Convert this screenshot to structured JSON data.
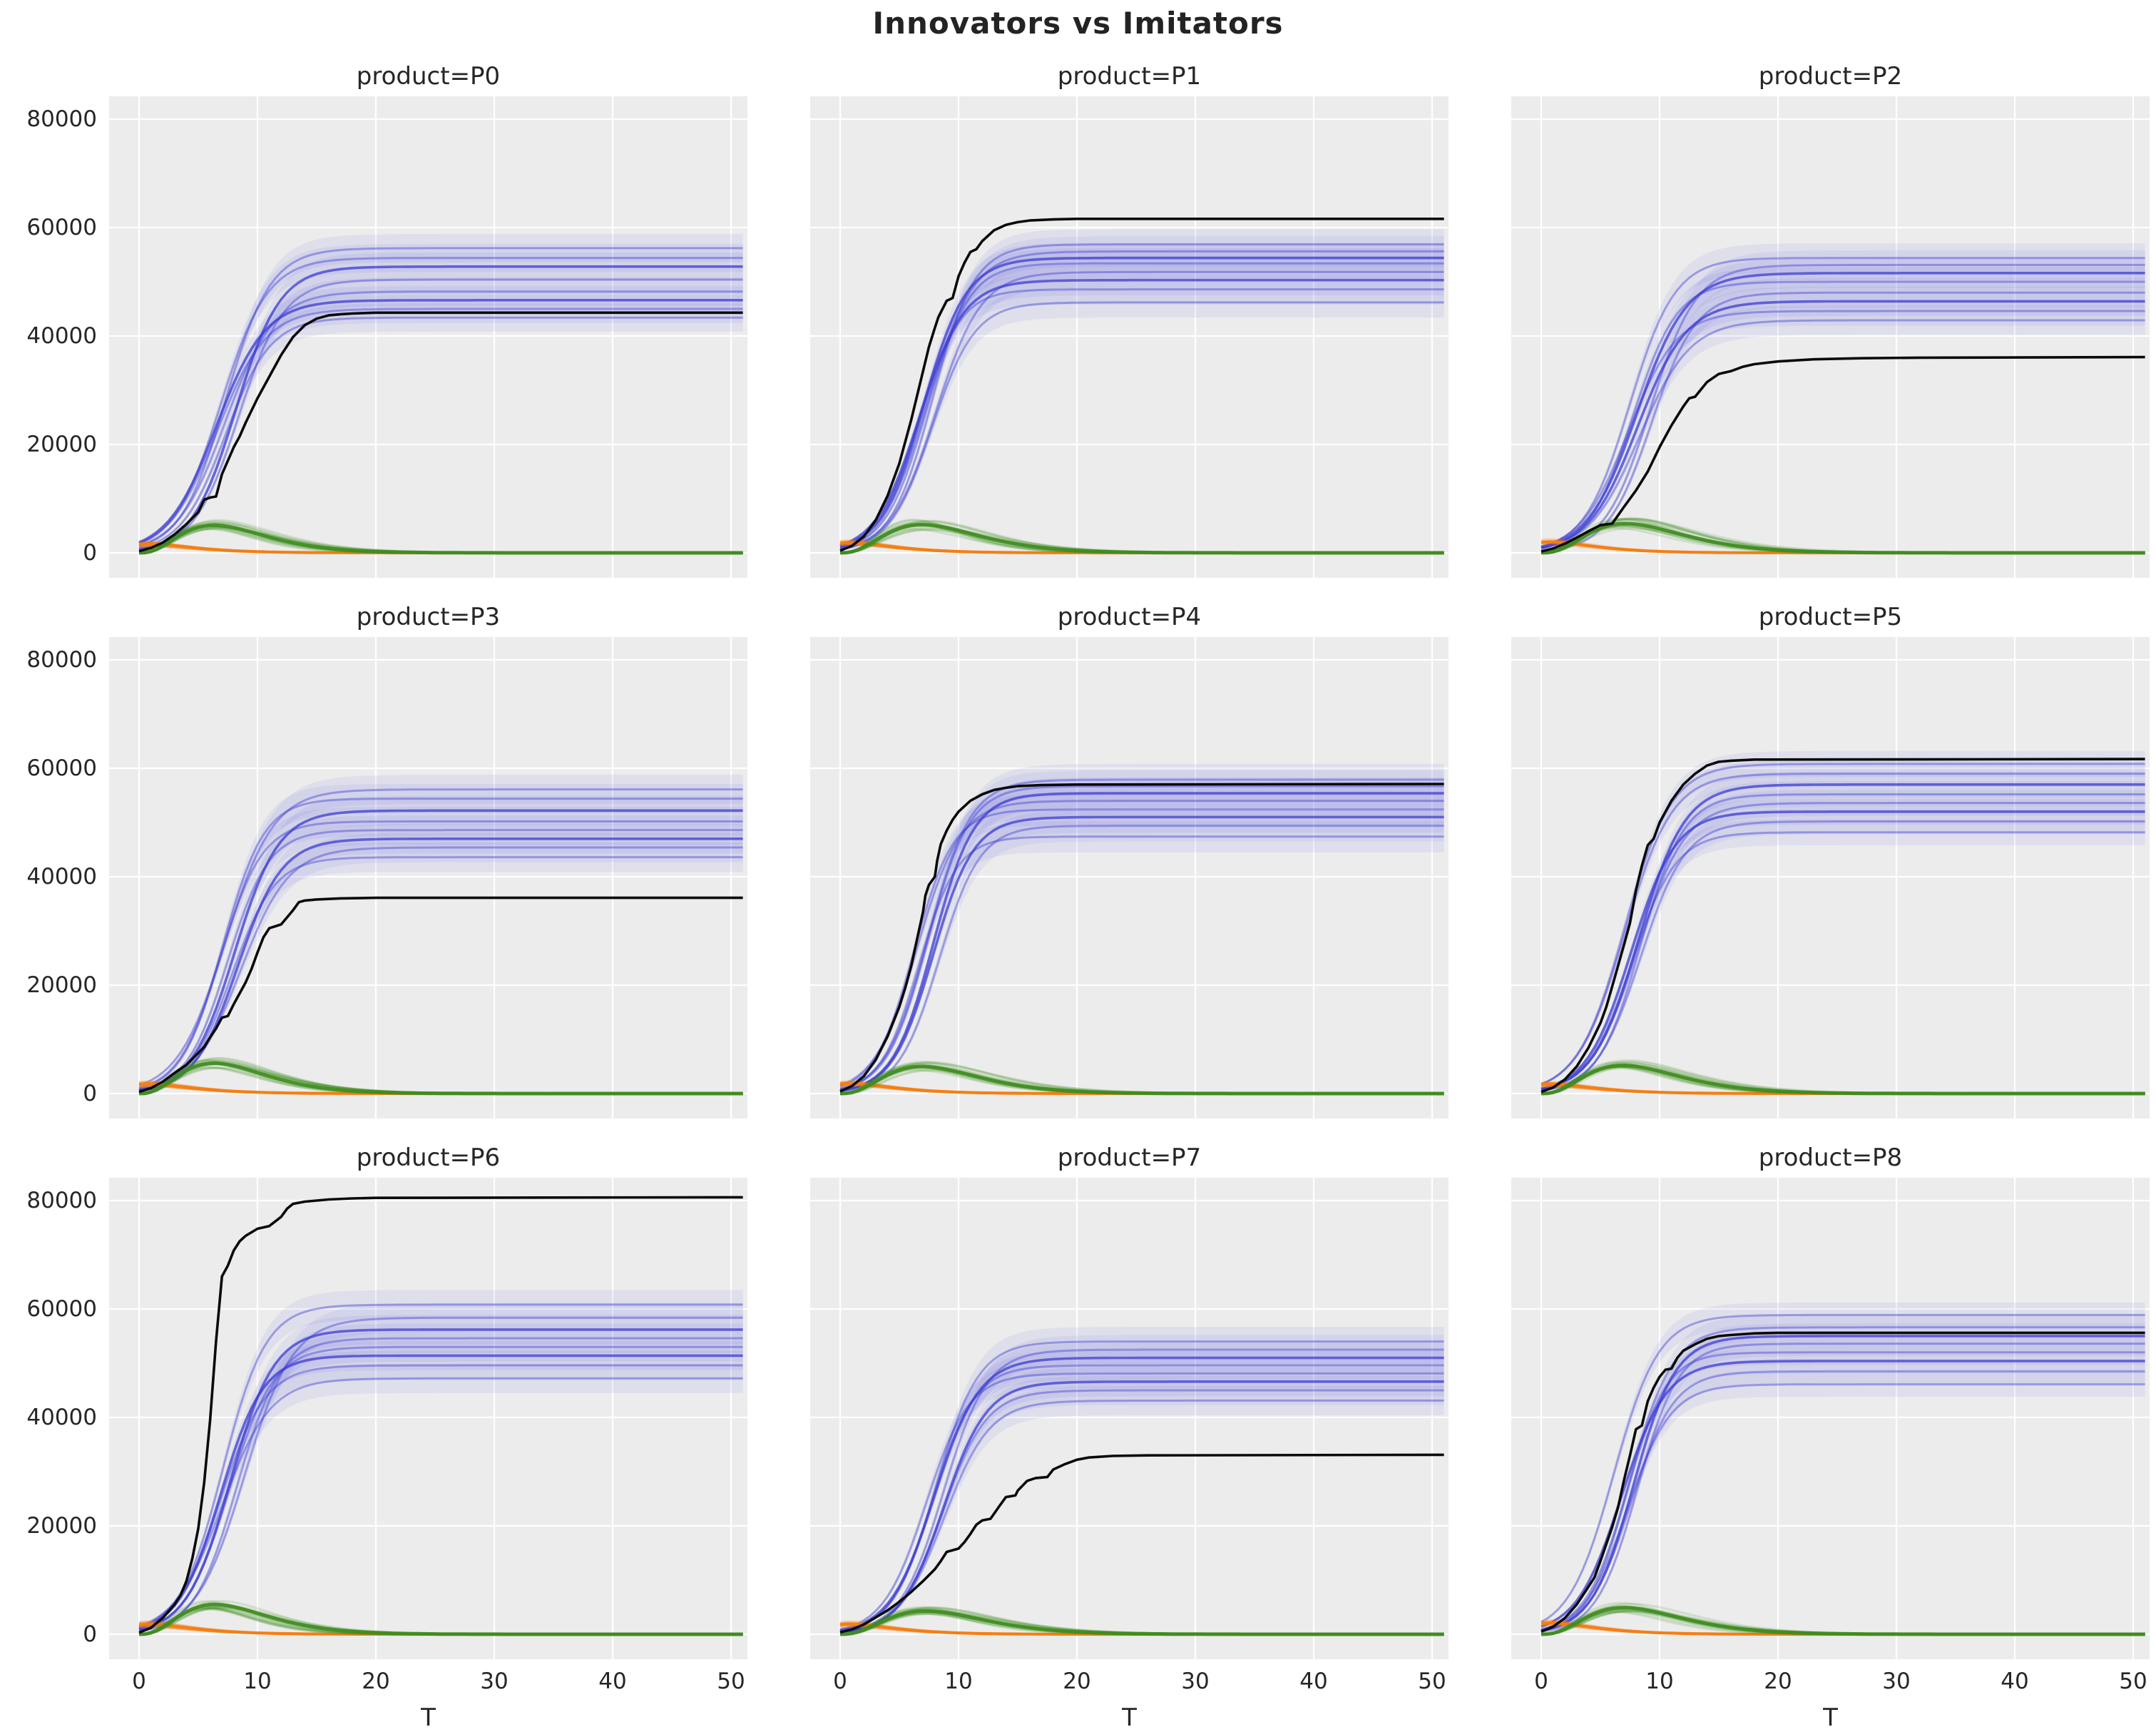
{
  "figure": {
    "title": "Innovators vs Imitators",
    "xlabel": "T",
    "x_ticks": [
      0,
      10,
      20,
      30,
      40,
      50
    ],
    "y_ticks": [
      0,
      20000,
      40000,
      60000,
      80000
    ],
    "x_max": 51,
    "y_axis_max_label": 80000,
    "rows": 3,
    "cols": 3,
    "colors": {
      "panel_background": "#ececec",
      "gridline": "#ffffff",
      "text": "#262626",
      "observed_black_line": "#0a0a0a",
      "simulated_blue_line": "#3c3cd2",
      "simulated_blue_band": "#6969e1",
      "green_new_adopter_curves": "#3f8c20",
      "orange_innovator_curves": "#f57d11"
    }
  },
  "chart_data": [
    {
      "type": "line",
      "title": "product=P0",
      "black_line": {
        "plateau": 44300,
        "t": [
          0,
          1,
          2,
          3,
          4,
          5,
          5.5,
          6,
          6.5,
          7,
          8,
          8.5,
          9,
          10,
          11,
          12,
          13,
          14,
          15,
          16,
          17,
          18,
          20,
          51
        ],
        "v": [
          300,
          900,
          1900,
          3400,
          5300,
          7500,
          9800,
          10200,
          10400,
          14500,
          19500,
          21500,
          24000,
          28500,
          32500,
          36500,
          39800,
          42000,
          43200,
          43800,
          44000,
          44150,
          44300,
          44300
        ]
      },
      "blue_runs": {
        "plateaus": [
          43400,
          45000,
          46600,
          48200,
          50400,
          52800,
          54400,
          56200
        ],
        "t_mid": 7.6,
        "rate": 0.52,
        "band_halfwidth": 2600,
        "final_range": [
          41000,
          58300
        ]
      },
      "green_runs": {
        "peak": 5100,
        "t_peak": 6.3,
        "runs": 16
      },
      "orange_runs": {
        "start": 1600,
        "runs": 14
      }
    },
    {
      "type": "line",
      "title": "product=P1",
      "black_line": {
        "plateau": 61600,
        "t": [
          0,
          1,
          2,
          3,
          4,
          5,
          6,
          7,
          7.5,
          8,
          8.3,
          9,
          9.5,
          10,
          10.5,
          11,
          11.5,
          12,
          13,
          14,
          15,
          16,
          18,
          20,
          51
        ],
        "v": [
          400,
          1300,
          3000,
          6000,
          10500,
          16500,
          24500,
          33500,
          38000,
          41500,
          43500,
          46500,
          47000,
          51000,
          53500,
          55500,
          56000,
          57500,
          59500,
          60500,
          61000,
          61300,
          61500,
          61600,
          61600
        ]
      },
      "blue_runs": {
        "plateaus": [
          46200,
          48600,
          50300,
          51800,
          53400,
          54400,
          55600,
          56900
        ],
        "t_mid": 7.1,
        "rate": 0.56,
        "band_halfwidth": 2800,
        "final_range": [
          43400,
          59700
        ]
      },
      "green_runs": {
        "peak": 5200,
        "t_peak": 6.9,
        "runs": 16
      },
      "orange_runs": {
        "start": 1800,
        "runs": 14
      }
    },
    {
      "type": "line",
      "title": "product=P2",
      "black_line": {
        "plateau": 36100,
        "t": [
          0,
          1,
          2,
          3,
          4,
          5,
          6,
          7,
          8,
          9,
          10,
          11,
          12,
          12.5,
          13,
          14,
          15,
          16,
          17,
          18,
          20,
          23,
          27,
          32,
          51
        ],
        "v": [
          250,
          800,
          1700,
          2800,
          4000,
          5100,
          5400,
          8500,
          11500,
          15000,
          19500,
          23500,
          27000,
          28500,
          28800,
          31500,
          33000,
          33500,
          34300,
          34800,
          35300,
          35700,
          35900,
          36000,
          36100
        ]
      },
      "blue_runs": {
        "plateaus": [
          42900,
          44600,
          46400,
          48000,
          50000,
          51600,
          53100,
          54400
        ],
        "t_mid": 8.3,
        "rate": 0.5,
        "band_halfwidth": 2700,
        "final_range": [
          40200,
          57100
        ]
      },
      "green_runs": {
        "peak": 5400,
        "t_peak": 7.1,
        "runs": 16
      },
      "orange_runs": {
        "start": 1900,
        "runs": 14
      }
    },
    {
      "type": "line",
      "title": "product=P3",
      "black_line": {
        "plateau": 36100,
        "t": [
          0,
          1,
          2,
          3,
          4,
          5,
          5.5,
          6,
          6.5,
          7,
          7.5,
          8,
          9,
          9.5,
          10,
          10.5,
          11,
          12,
          13,
          13.5,
          14,
          15,
          17,
          20,
          51
        ],
        "v": [
          300,
          1000,
          2200,
          3800,
          5300,
          7500,
          8600,
          10400,
          12000,
          14000,
          14300,
          16500,
          20500,
          23000,
          26000,
          28800,
          30500,
          31200,
          33800,
          35300,
          35600,
          35800,
          36000,
          36100,
          36100
        ]
      },
      "blue_runs": {
        "plateaus": [
          43600,
          45400,
          47000,
          48600,
          50200,
          52200,
          54400,
          56100
        ],
        "t_mid": 7.7,
        "rate": 0.53,
        "band_halfwidth": 2700,
        "final_range": [
          40900,
          58800
        ]
      },
      "green_runs": {
        "peak": 5600,
        "t_peak": 6.3,
        "runs": 16
      },
      "orange_runs": {
        "start": 1700,
        "runs": 14
      }
    },
    {
      "type": "line",
      "title": "product=P4",
      "black_line": {
        "plateau": 57100,
        "t": [
          0,
          1,
          2,
          3,
          4,
          5,
          5.5,
          6,
          6.5,
          7,
          7.2,
          7.5,
          8,
          8.2,
          8.5,
          9,
          9.5,
          10,
          11,
          12,
          13,
          14,
          15,
          17,
          20,
          51
        ],
        "v": [
          400,
          1400,
          3200,
          6200,
          10500,
          16000,
          19500,
          23500,
          28500,
          33500,
          36500,
          38500,
          40000,
          43000,
          46000,
          48500,
          50500,
          52000,
          54000,
          55200,
          56000,
          56400,
          56700,
          56900,
          57000,
          57100
        ]
      },
      "blue_runs": {
        "plateaus": [
          47400,
          49400,
          51000,
          52400,
          54000,
          55400,
          56700,
          57900
        ],
        "t_mid": 7.3,
        "rate": 0.57,
        "band_halfwidth": 2900,
        "final_range": [
          44500,
          60800
        ]
      },
      "green_runs": {
        "peak": 5000,
        "t_peak": 6.9,
        "runs": 16
      },
      "orange_runs": {
        "start": 1800,
        "runs": 14
      }
    },
    {
      "type": "line",
      "title": "product=P5",
      "black_line": {
        "plateau": 61700,
        "t": [
          0,
          1,
          2,
          3,
          4,
          5,
          5.5,
          6,
          7,
          7.5,
          8,
          8.5,
          9,
          9.5,
          10,
          11,
          12,
          13,
          14,
          15,
          16,
          18,
          51
        ],
        "v": [
          300,
          1100,
          2600,
          5000,
          8500,
          13000,
          16000,
          19800,
          27500,
          31500,
          37500,
          42000,
          45800,
          47000,
          50000,
          54000,
          57000,
          59000,
          60500,
          61200,
          61400,
          61600,
          61700
        ]
      },
      "blue_runs": {
        "plateaus": [
          48200,
          50200,
          52000,
          53600,
          55200,
          57000,
          59000,
          60800
        ],
        "t_mid": 7.7,
        "rate": 0.54,
        "band_halfwidth": 2400,
        "final_range": [
          45800,
          63200
        ]
      },
      "green_runs": {
        "peak": 5200,
        "t_peak": 6.9,
        "runs": 16
      },
      "orange_runs": {
        "start": 1700,
        "runs": 14
      }
    },
    {
      "type": "line",
      "title": "product=P6",
      "black_line": {
        "plateau": 80600,
        "t": [
          0,
          1,
          2,
          3,
          3.5,
          4,
          4.5,
          5,
          5.5,
          6,
          6.5,
          7,
          7.5,
          8,
          8.5,
          9,
          10,
          11,
          12,
          12.5,
          13,
          14,
          16,
          18,
          20,
          51
        ],
        "v": [
          300,
          1200,
          3000,
          5500,
          7200,
          9800,
          14000,
          19500,
          28000,
          39500,
          54000,
          66000,
          68000,
          70800,
          72500,
          73500,
          74800,
          75300,
          77000,
          78500,
          79400,
          79800,
          80200,
          80400,
          80500,
          80600
        ]
      },
      "blue_runs": {
        "plateaus": [
          47200,
          49600,
          51400,
          53000,
          54600,
          56200,
          58400,
          60800
        ],
        "t_mid": 7.9,
        "rate": 0.52,
        "band_halfwidth": 2700,
        "final_range": [
          44500,
          63500
        ]
      },
      "green_runs": {
        "peak": 5500,
        "t_peak": 6.4,
        "runs": 16
      },
      "orange_runs": {
        "start": 1800,
        "runs": 14
      }
    },
    {
      "type": "line",
      "title": "product=P7",
      "black_line": {
        "plateau": 33100,
        "t": [
          0,
          1,
          2,
          3,
          4,
          5,
          6,
          7,
          8,
          8.5,
          9,
          10,
          10.5,
          11,
          11.5,
          12,
          12.7,
          13.5,
          14,
          14.8,
          15,
          15.8,
          16.5,
          17.5,
          18,
          19,
          20,
          21,
          23,
          26,
          51
        ],
        "v": [
          350,
          900,
          1800,
          3100,
          4400,
          6000,
          7800,
          9800,
          12000,
          13500,
          15200,
          15800,
          17000,
          18500,
          20200,
          21000,
          21300,
          23800,
          25300,
          25600,
          26500,
          28300,
          28800,
          29000,
          30400,
          31400,
          32200,
          32600,
          32900,
          33000,
          33100
        ]
      },
      "blue_runs": {
        "plateaus": [
          43100,
          45000,
          46600,
          48100,
          49600,
          51000,
          52500,
          54000
        ],
        "t_mid": 8.0,
        "rate": 0.52,
        "band_halfwidth": 2700,
        "final_range": [
          40400,
          56700
        ]
      },
      "green_runs": {
        "peak": 4300,
        "t_peak": 7.2,
        "runs": 16
      },
      "orange_runs": {
        "start": 1800,
        "runs": 14
      }
    },
    {
      "type": "line",
      "title": "product=P8",
      "black_line": {
        "plateau": 55600,
        "t": [
          0,
          1,
          2,
          3,
          4,
          4.5,
          5,
          6,
          6.5,
          7,
          7.5,
          8,
          8.5,
          9,
          9.5,
          10,
          10.5,
          11,
          11.5,
          12,
          13,
          14,
          15,
          16,
          18,
          20,
          51
        ],
        "v": [
          500,
          1400,
          3000,
          5500,
          8800,
          10500,
          13500,
          19800,
          23500,
          28500,
          33000,
          37800,
          38500,
          43000,
          45500,
          47500,
          48800,
          49000,
          51000,
          52300,
          53500,
          54500,
          55000,
          55200,
          55500,
          55600,
          55600
        ]
      },
      "blue_runs": {
        "plateaus": [
          46100,
          48500,
          50400,
          52000,
          53600,
          55000,
          56600,
          58900
        ],
        "t_mid": 7.1,
        "rate": 0.56,
        "band_halfwidth": 2300,
        "final_range": [
          43500,
          61200
        ]
      },
      "green_runs": {
        "peak": 4900,
        "t_peak": 7.0,
        "runs": 16
      },
      "orange_runs": {
        "start": 2000,
        "runs": 14
      }
    }
  ]
}
